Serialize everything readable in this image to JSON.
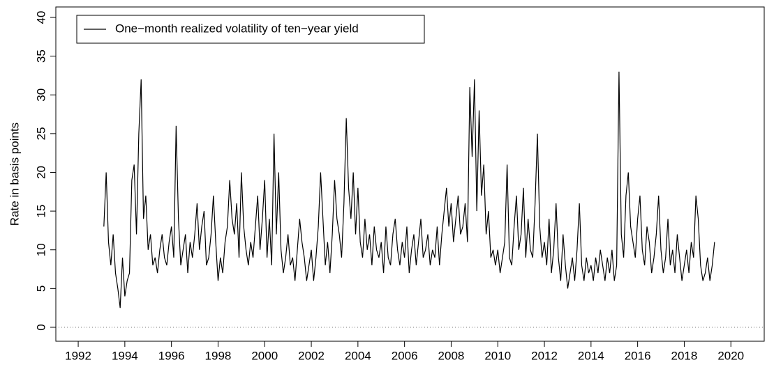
{
  "chart_data": {
    "type": "line",
    "y_label": "Rate in basis points",
    "x": [
      1993.1,
      1993.2,
      1993.3,
      1993.4,
      1993.5,
      1993.6,
      1993.7,
      1993.8,
      1993.9,
      1994.0,
      1994.1,
      1994.2,
      1994.3,
      1994.4,
      1994.5,
      1994.6,
      1994.7,
      1994.8,
      1994.9,
      1995.0,
      1995.1,
      1995.2,
      1995.3,
      1995.4,
      1995.5,
      1995.6,
      1995.7,
      1995.8,
      1995.9,
      1996.0,
      1996.1,
      1996.2,
      1996.3,
      1996.4,
      1996.5,
      1996.6,
      1996.7,
      1996.8,
      1996.9,
      1997.0,
      1997.1,
      1997.2,
      1997.3,
      1997.4,
      1997.5,
      1997.6,
      1997.7,
      1997.8,
      1997.9,
      1998.0,
      1998.1,
      1998.2,
      1998.3,
      1998.4,
      1998.5,
      1998.6,
      1998.7,
      1998.8,
      1998.9,
      1999.0,
      1999.1,
      1999.2,
      1999.3,
      1999.4,
      1999.5,
      1999.6,
      1999.7,
      1999.8,
      1999.9,
      2000.0,
      2000.1,
      2000.2,
      2000.3,
      2000.4,
      2000.5,
      2000.6,
      2000.7,
      2000.8,
      2000.9,
      2001.0,
      2001.1,
      2001.2,
      2001.3,
      2001.4,
      2001.5,
      2001.6,
      2001.7,
      2001.8,
      2001.9,
      2002.0,
      2002.1,
      2002.2,
      2002.3,
      2002.4,
      2002.5,
      2002.6,
      2002.7,
      2002.8,
      2002.9,
      2003.0,
      2003.1,
      2003.2,
      2003.3,
      2003.4,
      2003.5,
      2003.6,
      2003.7,
      2003.8,
      2003.9,
      2004.0,
      2004.1,
      2004.2,
      2004.3,
      2004.4,
      2004.5,
      2004.6,
      2004.7,
      2004.8,
      2004.9,
      2005.0,
      2005.1,
      2005.2,
      2005.3,
      2005.4,
      2005.5,
      2005.6,
      2005.7,
      2005.8,
      2005.9,
      2006.0,
      2006.1,
      2006.2,
      2006.3,
      2006.4,
      2006.5,
      2006.6,
      2006.7,
      2006.8,
      2006.9,
      2007.0,
      2007.1,
      2007.2,
      2007.3,
      2007.4,
      2007.5,
      2007.6,
      2007.7,
      2007.8,
      2007.9,
      2008.0,
      2008.1,
      2008.2,
      2008.3,
      2008.4,
      2008.5,
      2008.6,
      2008.7,
      2008.8,
      2008.9,
      2009.0,
      2009.1,
      2009.2,
      2009.3,
      2009.4,
      2009.5,
      2009.6,
      2009.7,
      2009.8,
      2009.9,
      2010.0,
      2010.1,
      2010.2,
      2010.3,
      2010.4,
      2010.5,
      2010.6,
      2010.7,
      2010.8,
      2010.9,
      2011.0,
      2011.1,
      2011.2,
      2011.3,
      2011.4,
      2011.5,
      2011.6,
      2011.7,
      2011.8,
      2011.9,
      2012.0,
      2012.1,
      2012.2,
      2012.3,
      2012.4,
      2012.5,
      2012.6,
      2012.7,
      2012.8,
      2012.9,
      2013.0,
      2013.1,
      2013.2,
      2013.3,
      2013.4,
      2013.5,
      2013.6,
      2013.7,
      2013.8,
      2013.9,
      2014.0,
      2014.1,
      2014.2,
      2014.3,
      2014.4,
      2014.5,
      2014.6,
      2014.7,
      2014.8,
      2014.9,
      2015.0,
      2015.1,
      2015.2,
      2015.3,
      2015.4,
      2015.5,
      2015.6,
      2015.7,
      2015.8,
      2015.9,
      2016.0,
      2016.1,
      2016.2,
      2016.3,
      2016.4,
      2016.5,
      2016.6,
      2016.7,
      2016.8,
      2016.9,
      2017.0,
      2017.1,
      2017.2,
      2017.3,
      2017.4,
      2017.5,
      2017.6,
      2017.7,
      2017.8,
      2017.9,
      2018.0,
      2018.1,
      2018.2,
      2018.3,
      2018.4,
      2018.5,
      2018.6,
      2018.7,
      2018.8,
      2018.9,
      2019.0,
      2019.1,
      2019.2,
      2019.3
    ],
    "series": [
      {
        "name": "One−month realized volatility of ten−year yield",
        "color": "#000000",
        "values": [
          13,
          20,
          11,
          8,
          12,
          7,
          5,
          2.5,
          9,
          4,
          6,
          7,
          19,
          21,
          12,
          25,
          32,
          14,
          17,
          10,
          12,
          8,
          9,
          7,
          10,
          12,
          9,
          8,
          11,
          13,
          9,
          26,
          14,
          8,
          10,
          12,
          7,
          11,
          9,
          12,
          16,
          10,
          13,
          15,
          8,
          9,
          12,
          17,
          11,
          6,
          9,
          7,
          11,
          13,
          19,
          14,
          12,
          16,
          9,
          20,
          13,
          10,
          8,
          11,
          9,
          13,
          17,
          10,
          14,
          19,
          9,
          14,
          8,
          25,
          12,
          20,
          10,
          7,
          9,
          12,
          8,
          9,
          6,
          10,
          14,
          11,
          9,
          6,
          8,
          10,
          6,
          9,
          13,
          20,
          14,
          8,
          11,
          7,
          12,
          19,
          14,
          12,
          9,
          16,
          27,
          18,
          14,
          20,
          12,
          18,
          11,
          9,
          14,
          10,
          12,
          8,
          13,
          10,
          9,
          11,
          7,
          13,
          9,
          8,
          12,
          14,
          10,
          8,
          11,
          9,
          13,
          7,
          10,
          12,
          8,
          11,
          14,
          9,
          10,
          12,
          8,
          10,
          9,
          13,
          8,
          12,
          15,
          18,
          13,
          16,
          11,
          14,
          17,
          12,
          13,
          16,
          11,
          31,
          22,
          32,
          15,
          28,
          17,
          21,
          12,
          15,
          9,
          10,
          8,
          10,
          7,
          9,
          11,
          21,
          9,
          8,
          13,
          17,
          10,
          12,
          18,
          9,
          14,
          10,
          9,
          16,
          25,
          13,
          9,
          11,
          8,
          14,
          7,
          10,
          16,
          9,
          6,
          12,
          8,
          5,
          7,
          9,
          6,
          10,
          16,
          8,
          6,
          9,
          7,
          8,
          6,
          9,
          7,
          10,
          8,
          6,
          9,
          7,
          10,
          6,
          8,
          33,
          12,
          9,
          17,
          20,
          13,
          11,
          9,
          14,
          17,
          10,
          8,
          13,
          11,
          7,
          9,
          12,
          17,
          10,
          7,
          9,
          14,
          8,
          10,
          7,
          12,
          9,
          6,
          8,
          10,
          7,
          11,
          9,
          17,
          14,
          8,
          6,
          7,
          9,
          6,
          8,
          11
        ]
      }
    ],
    "xlim": [
      1991.04,
      2021.43
    ],
    "ylim": [
      -1.8,
      41.35
    ],
    "xticks": [
      1992,
      1994,
      1996,
      1998,
      2000,
      2002,
      2004,
      2006,
      2008,
      2010,
      2012,
      2014,
      2016,
      2018,
      2020
    ],
    "yticks": [
      0,
      5,
      10,
      15,
      20,
      25,
      30,
      35,
      40
    ],
    "reference_line": 0,
    "legend": "top-left"
  }
}
